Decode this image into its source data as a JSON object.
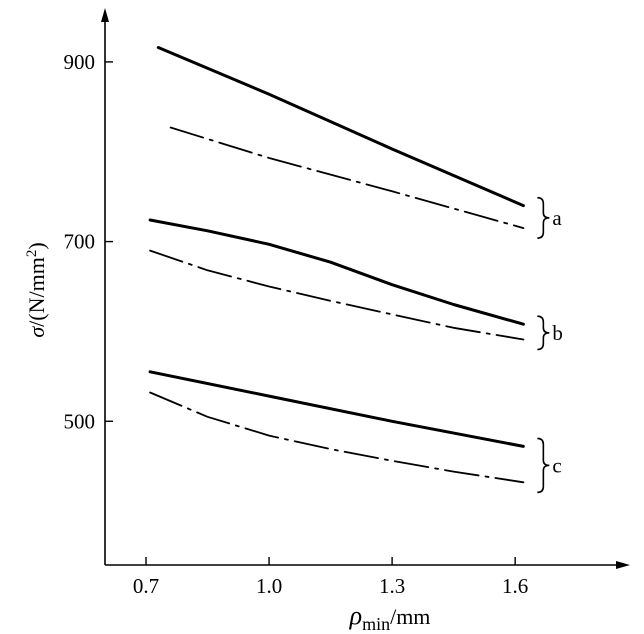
{
  "chart_data": {
    "type": "line",
    "xlabel": {
      "symbol": "ρ",
      "subscript": "min",
      "unit": "/mm"
    },
    "ylabel": {
      "symbol": "σ",
      "unit": "/(N/mm",
      "superscript": "2",
      "close": ")"
    },
    "xlim": [
      0.6,
      1.88
    ],
    "ylim": [
      340,
      960
    ],
    "xticks": [
      0.7,
      1.0,
      1.3,
      1.6
    ],
    "xtick_labels": [
      "0.7",
      "1.0",
      "1.3",
      "1.6"
    ],
    "yticks": [
      500,
      700,
      900
    ],
    "ytick_labels": [
      "500",
      "700",
      "900"
    ],
    "grid": false,
    "line_styles": {
      "solid": "solid",
      "dashdot": "dash-dot"
    },
    "color": "#000000",
    "groups": [
      {
        "label": "a",
        "series": [
          {
            "style": "solid",
            "x": [
              0.73,
              1.0,
              1.3,
              1.62
            ],
            "y": [
              916,
              864,
              803,
              740
            ]
          },
          {
            "style": "dashdot",
            "x": [
              0.76,
              1.0,
              1.3,
              1.62
            ],
            "y": [
              827,
              793,
              756,
              715
            ]
          }
        ]
      },
      {
        "label": "b",
        "series": [
          {
            "style": "solid",
            "x": [
              0.71,
              0.85,
              1.0,
              1.15,
              1.3,
              1.45,
              1.62
            ],
            "y": [
              724,
              712,
              697,
              677,
              652,
              630,
              608
            ]
          },
          {
            "style": "dashdot",
            "x": [
              0.71,
              0.85,
              1.0,
              1.15,
              1.3,
              1.45,
              1.62
            ],
            "y": [
              690,
              668,
              650,
              634,
              619,
              604,
              591
            ]
          }
        ]
      },
      {
        "label": "c",
        "series": [
          {
            "style": "solid",
            "x": [
              0.71,
              1.0,
              1.3,
              1.62
            ],
            "y": [
              555,
              528,
              500,
              472
            ]
          },
          {
            "style": "dashdot",
            "x": [
              0.71,
              0.85,
              1.0,
              1.15,
              1.3,
              1.45,
              1.62
            ],
            "y": [
              532,
              505,
              484,
              469,
              456,
              444,
              432
            ]
          }
        ]
      }
    ]
  }
}
